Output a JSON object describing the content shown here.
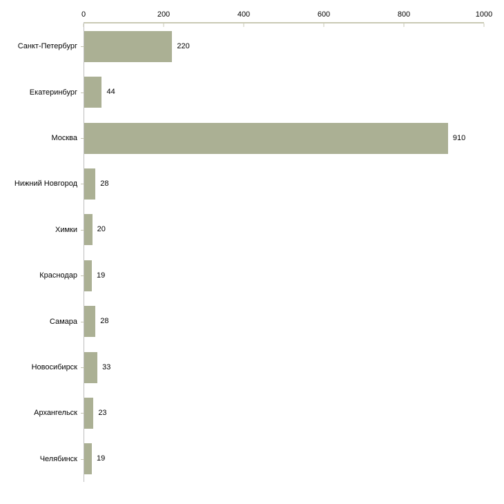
{
  "chart_data": {
    "type": "bar",
    "orientation": "horizontal",
    "title": "",
    "xlabel": "",
    "ylabel": "",
    "categories": [
      "Санкт-Петербург",
      "Екатеринбург",
      "Москва",
      "Нижний Новгород",
      "Химки",
      "Краснодар",
      "Самара",
      "Новосибирск",
      "Архангельск",
      "Челябинск"
    ],
    "values": [
      220,
      44,
      910,
      28,
      20,
      19,
      28,
      33,
      23,
      19
    ],
    "xlim": [
      0,
      1000
    ],
    "x_ticks": [
      0,
      200,
      400,
      600,
      800,
      1000
    ],
    "axis_position": "top",
    "grid": false,
    "legend": false,
    "value_labels_shown": true
  },
  "colors": {
    "bar_fill": "#abb094",
    "x_axis_line": "#c9c9b4",
    "y_axis_line": "#bdbdbd",
    "background": "#ffffff",
    "text": "#000000"
  }
}
